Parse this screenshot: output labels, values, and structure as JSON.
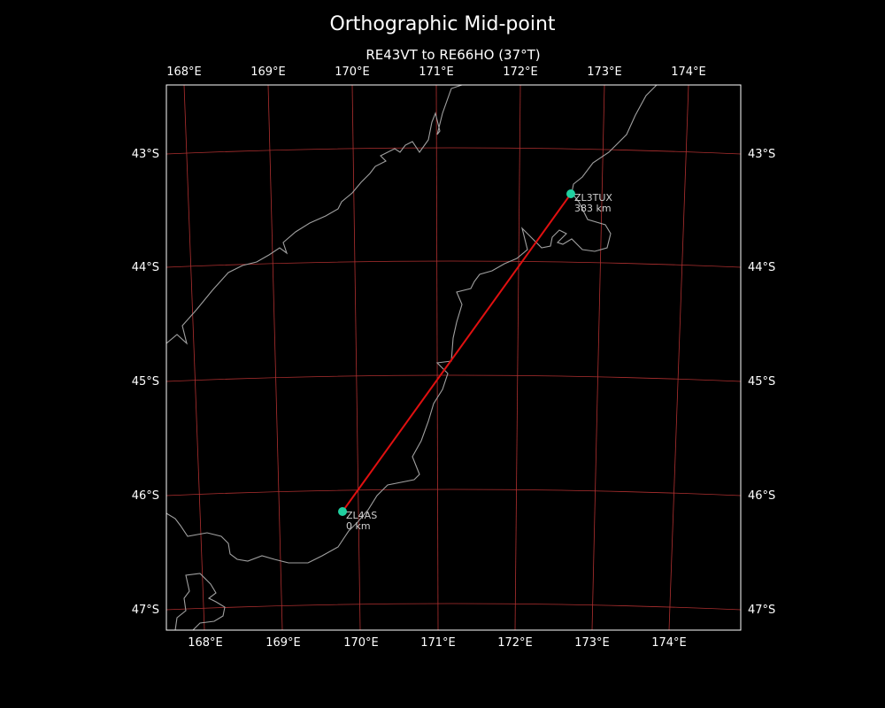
{
  "title": "Orthographic Mid-point",
  "subtitle": "RE43VT to RE66HO (37°T)",
  "lon_ticks": [
    "168°E",
    "169°E",
    "170°E",
    "171°E",
    "172°E",
    "173°E",
    "174°E"
  ],
  "lat_ticks": [
    "43°S",
    "44°S",
    "45°S",
    "46°S",
    "47°S"
  ],
  "extent": {
    "lon": [
      167.5,
      174.9
    ],
    "lat": [
      -42.4,
      -47.2
    ]
  },
  "projection": "orthographic",
  "colors": {
    "background": "#000000",
    "gridlines": "#b03030",
    "coastline": "#a0a0a0",
    "path": "#e01010",
    "station": "#20d0a0",
    "frame": "#ffffff"
  },
  "path": {
    "from": {
      "callsign": "ZL4AS",
      "distance": "0 km",
      "lon": 169.8,
      "lat": -46.15
    },
    "to": {
      "callsign": "ZL3TUX",
      "distance": "383 km",
      "lon": 172.65,
      "lat": -43.4
    }
  }
}
